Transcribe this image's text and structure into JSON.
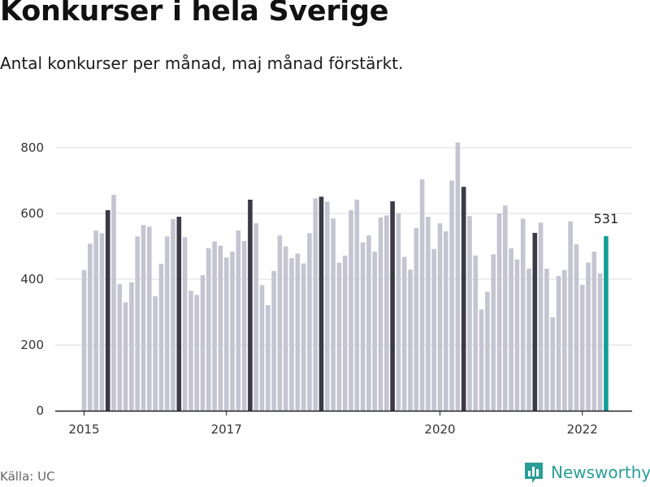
{
  "title": "Konkurser i hela Sverige",
  "subtitle": "Antal konkurser per månad, maj månad förstärkt.",
  "source": "Källa: UC",
  "brand": "Newsworthy",
  "colors": {
    "bar": "#c5c4d1",
    "highlight": "#3b3a46",
    "current": "#109e95",
    "grid": "#dcdcdc",
    "brand": "#2a9d97"
  },
  "chart_data": {
    "type": "bar",
    "title": "Konkurser i hela Sverige",
    "subtitle": "Antal konkurser per månad, maj månad förstärkt.",
    "ylim": [
      0,
      800
    ],
    "yticks": [
      0,
      200,
      400,
      600,
      800
    ],
    "xticks": [
      "2015",
      "2017",
      "2020",
      "2022"
    ],
    "xtick_positions": [
      "2015-01",
      "2017-01",
      "2020-01",
      "2022-01"
    ],
    "grid": true,
    "highlight_month": "05",
    "current_label": "531",
    "categories": [
      "2015-01",
      "2015-02",
      "2015-03",
      "2015-04",
      "2015-05",
      "2015-06",
      "2015-07",
      "2015-08",
      "2015-09",
      "2015-10",
      "2015-11",
      "2015-12",
      "2016-01",
      "2016-02",
      "2016-03",
      "2016-04",
      "2016-05",
      "2016-06",
      "2016-07",
      "2016-08",
      "2016-09",
      "2016-10",
      "2016-11",
      "2016-12",
      "2017-01",
      "2017-02",
      "2017-03",
      "2017-04",
      "2017-05",
      "2017-06",
      "2017-07",
      "2017-08",
      "2017-09",
      "2017-10",
      "2017-11",
      "2017-12",
      "2018-01",
      "2018-02",
      "2018-03",
      "2018-04",
      "2018-05",
      "2018-06",
      "2018-07",
      "2018-08",
      "2018-09",
      "2018-10",
      "2018-11",
      "2018-12",
      "2019-01",
      "2019-02",
      "2019-03",
      "2019-04",
      "2019-05",
      "2019-06",
      "2019-07",
      "2019-08",
      "2019-09",
      "2019-10",
      "2019-11",
      "2019-12",
      "2020-01",
      "2020-02",
      "2020-03",
      "2020-04",
      "2020-05",
      "2020-06",
      "2020-07",
      "2020-08",
      "2020-09",
      "2020-10",
      "2020-11",
      "2020-12",
      "2021-01",
      "2021-02",
      "2021-03",
      "2021-04",
      "2021-05",
      "2021-06",
      "2021-07",
      "2021-08",
      "2021-09",
      "2021-10",
      "2021-11",
      "2021-12",
      "2022-01",
      "2022-02",
      "2022-03",
      "2022-04",
      "2022-05"
    ],
    "values": [
      428,
      508,
      548,
      540,
      610,
      657,
      385,
      330,
      390,
      530,
      565,
      560,
      348,
      447,
      530,
      583,
      590,
      528,
      365,
      352,
      412,
      494,
      515,
      502,
      466,
      484,
      548,
      516,
      642,
      570,
      382,
      321,
      425,
      533,
      500,
      464,
      478,
      448,
      540,
      646,
      651,
      636,
      585,
      450,
      472,
      610,
      642,
      512,
      533,
      484,
      588,
      594,
      637,
      601,
      468,
      429,
      556,
      704,
      590,
      492,
      570,
      546,
      700,
      816,
      681,
      592,
      472,
      308,
      362,
      476,
      600,
      624,
      494,
      460,
      584,
      432,
      541,
      572,
      432,
      284,
      410,
      428,
      576,
      506,
      383,
      451,
      484,
      418,
      531
    ]
  }
}
